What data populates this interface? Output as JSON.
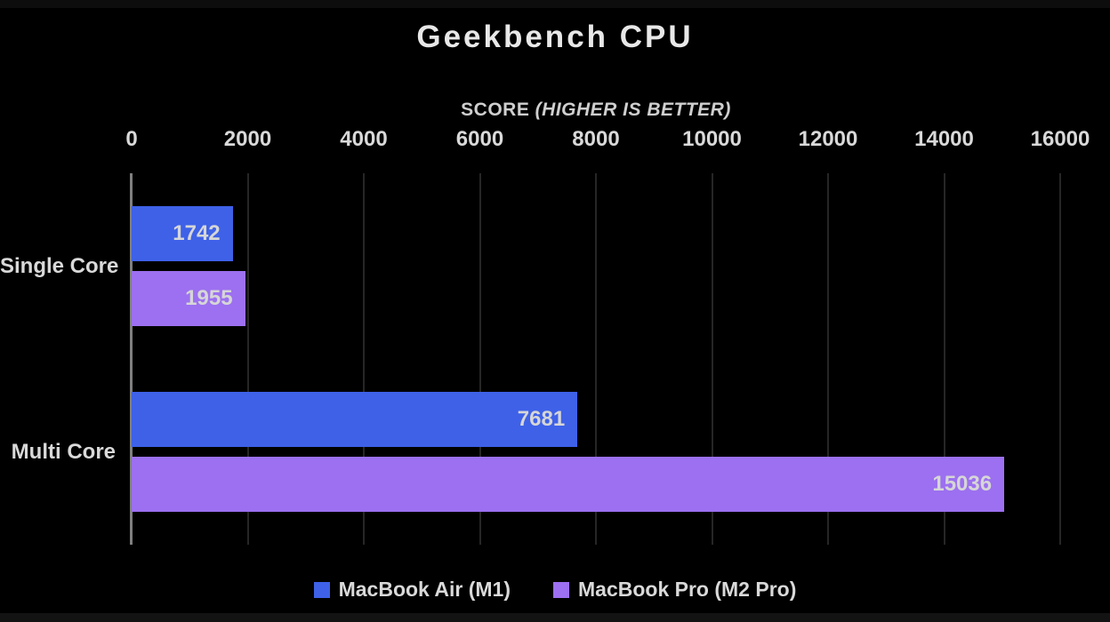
{
  "title": "Geekbench CPU",
  "axis": {
    "label_main": "SCORE",
    "label_note": "(HIGHER IS BETTER)"
  },
  "chart_data": {
    "type": "bar",
    "orientation": "horizontal",
    "title": "Geekbench CPU",
    "xlabel": "SCORE (HIGHER IS BETTER)",
    "categories": [
      "Single Core",
      "Multi Core"
    ],
    "series": [
      {
        "name": "MacBook Air (M1)",
        "color": "#3e61e8",
        "values": [
          1742,
          7681
        ]
      },
      {
        "name": "MacBook Pro (M2 Pro)",
        "color": "#9c70f0",
        "values": [
          1955,
          15036
        ]
      }
    ],
    "xlim": [
      0,
      16000
    ],
    "ticks": [
      0,
      2000,
      4000,
      6000,
      8000,
      10000,
      12000,
      14000,
      16000
    ],
    "grid": true,
    "legend_position": "bottom",
    "value_labels": "inside-end"
  },
  "colors": {
    "background": "#000000",
    "text": "#d9d9d9",
    "gridline": "#262626",
    "axis_line": "#7f7f7f",
    "series_blue": "#3e61e8",
    "series_purple": "#9c70f0"
  }
}
